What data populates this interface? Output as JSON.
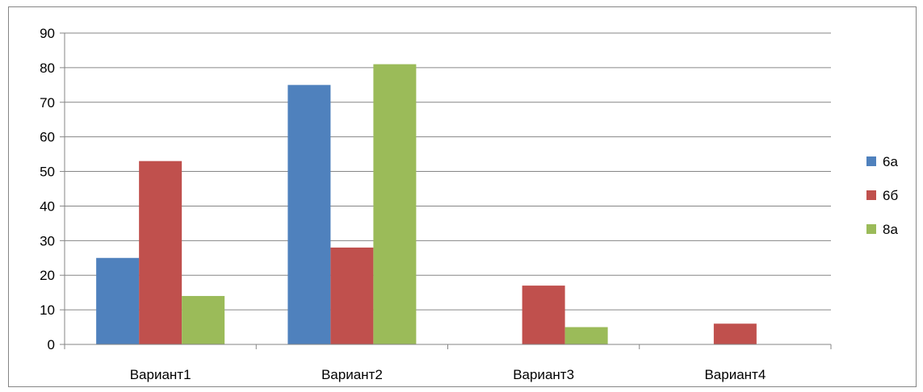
{
  "chart_data": {
    "type": "bar",
    "categories": [
      "Вариант1",
      "Вариант2",
      "Вариант3",
      "Вариант4"
    ],
    "series": [
      {
        "name": "6а",
        "values": [
          25,
          75,
          0,
          0
        ],
        "color": "#4f81bd"
      },
      {
        "name": "6б",
        "values": [
          53,
          28,
          17,
          6
        ],
        "color": "#c0504d"
      },
      {
        "name": "8а",
        "values": [
          14,
          81,
          5,
          0
        ],
        "color": "#9bbb59"
      }
    ],
    "ylim": [
      0,
      90
    ],
    "yticks": [
      0,
      10,
      20,
      30,
      40,
      50,
      60,
      70,
      80,
      90
    ],
    "grid": true,
    "legend_position": "right"
  }
}
